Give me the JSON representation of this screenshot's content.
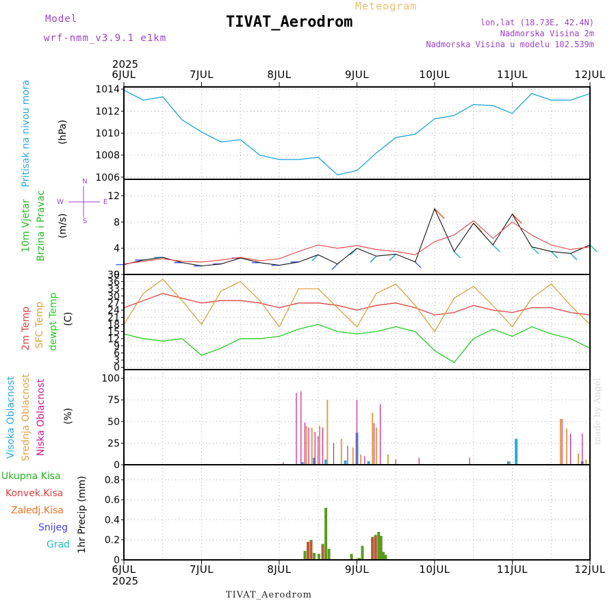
{
  "header": {
    "title": "TIVAT_Aerodrom",
    "subtitle": "Meteogram",
    "model_label": "Model",
    "model_name": "wrf-nmm_v3.9.1 e1km",
    "lonlat": "lon,lat (18.73E, 42.4N)",
    "altitude": "Nadmorska Visina 2m",
    "model_altitude": "Nadmorska Visina u modelu 102.539m"
  },
  "footer": {
    "station": "TIVAT_Aerodrom"
  },
  "watermark": "made by Angel",
  "colors": {
    "pressure": "#29a8e0",
    "wind_label": "#22bb22",
    "temp2m": "#e04040",
    "sfc_temp": "#e0a040",
    "dewpoint": "#22cc22",
    "high_cloud": "#29a8e0",
    "mid_cloud": "#e0a040",
    "low_cloud": "#d01890",
    "total_precip": "#22bb22",
    "convective": "#e04040",
    "freezing": "#f07020",
    "snow": "#4040e0",
    "hail": "#20c0c0",
    "header_purple": "#a040d0"
  },
  "chart_data": [
    {
      "type": "line",
      "panel": "pressure",
      "xticks": [
        "6JUL",
        "7JUL",
        "8JUL",
        "9JUL",
        "10JUL",
        "11JUL",
        "12JUL"
      ],
      "year": "2025",
      "ylabel": [
        "Pritisak na nivou mora",
        "(hPa)"
      ],
      "yticks": [
        1006,
        1008,
        1010,
        1012,
        1014
      ],
      "ylim": [
        1005.8,
        1014.2
      ],
      "x": [
        0,
        0.25,
        0.5,
        0.75,
        1.0,
        1.25,
        1.5,
        1.75,
        2.0,
        2.25,
        2.5,
        2.75,
        3.0,
        3.25,
        3.5,
        3.75,
        4.0,
        4.25,
        4.5,
        4.75,
        5.0,
        5.25,
        5.5,
        5.75,
        6.0
      ],
      "values": [
        1013.9,
        1013.0,
        1013.3,
        1011.2,
        1010.1,
        1009.2,
        1009.4,
        1008.0,
        1007.6,
        1007.6,
        1007.8,
        1006.2,
        1006.6,
        1008.2,
        1009.6,
        1009.9,
        1011.3,
        1011.6,
        1012.6,
        1012.5,
        1011.8,
        1013.6,
        1013.0,
        1013.0,
        1013.6
      ]
    },
    {
      "type": "line",
      "panel": "wind",
      "ylabel": [
        "10m Vjetar",
        "Brzina i Pravac",
        "(m/s)"
      ],
      "compass": [
        "N",
        "W",
        "E",
        "S"
      ],
      "yticks": [
        0,
        4,
        8,
        12
      ],
      "ylim": [
        0,
        14.5
      ],
      "x": [
        0,
        0.25,
        0.5,
        0.75,
        1.0,
        1.25,
        1.5,
        1.75,
        2.0,
        2.25,
        2.5,
        2.75,
        3.0,
        3.25,
        3.5,
        3.75,
        4.0,
        4.25,
        4.5,
        4.75,
        5.0,
        5.25,
        5.5,
        5.75,
        6.0
      ],
      "values": [
        1.5,
        2.2,
        2.6,
        1.8,
        1.3,
        1.6,
        2.5,
        1.8,
        1.4,
        1.9,
        3.0,
        1.6,
        4.0,
        2.8,
        3.1,
        1.9,
        10.0,
        3.5,
        7.8,
        4.5,
        9.2,
        4.2,
        3.5,
        3.2,
        4.5
      ],
      "gust_values": [
        1.6,
        2.0,
        2.4,
        2.0,
        1.9,
        2.2,
        2.6,
        2.1,
        2.4,
        3.5,
        4.5,
        4.0,
        4.4,
        3.8,
        3.5,
        3.0,
        5.0,
        6.0,
        8.2,
        5.5,
        8.0,
        6.0,
        4.5,
        3.8,
        4.2
      ]
    },
    {
      "type": "line",
      "panel": "temperature",
      "ylabel": [
        "2m Temp",
        "SFC Temp",
        "dewpt Temp",
        "(C)"
      ],
      "yticks": [
        0,
        3,
        6,
        9,
        12,
        15,
        18,
        21,
        24,
        27,
        30,
        33,
        36,
        39
      ],
      "ylim": [
        -1,
        39
      ],
      "x": [
        0,
        0.25,
        0.5,
        0.75,
        1.0,
        1.25,
        1.5,
        1.75,
        2.0,
        2.25,
        2.5,
        2.75,
        3.0,
        3.25,
        3.5,
        3.75,
        4.0,
        4.25,
        4.5,
        4.75,
        5.0,
        5.25,
        5.5,
        5.75,
        6.0
      ],
      "series": [
        {
          "name": "2m Temp",
          "values": [
            25,
            28,
            31,
            29,
            27,
            28,
            28,
            27,
            25,
            27,
            27,
            26,
            24,
            26,
            27,
            25,
            22,
            23,
            26,
            24,
            23,
            25,
            25,
            23,
            22
          ]
        },
        {
          "name": "SFC Temp",
          "values": [
            18,
            31,
            37,
            28,
            18,
            32,
            36,
            28,
            17,
            33,
            33,
            25,
            17,
            31,
            35,
            26,
            15,
            29,
            34,
            26,
            17,
            29,
            35,
            26,
            18
          ]
        },
        {
          "name": "dewpt Temp",
          "values": [
            14,
            12,
            11,
            12,
            5,
            8,
            12,
            12,
            13,
            16,
            18,
            15,
            14,
            15,
            17,
            15,
            7,
            2,
            12,
            16,
            13,
            17,
            14,
            12,
            8
          ]
        }
      ]
    },
    {
      "type": "bar",
      "panel": "cloud",
      "ylabel": [
        "Visoka Oblacnost",
        "Srednja Oblacnost",
        "Niska Oblacnost",
        "(%)"
      ],
      "yticks": [
        0,
        25,
        50,
        75,
        100
      ],
      "ylim": [
        0,
        110
      ],
      "series": [
        {
          "name": "Visoka Oblacnost",
          "x": [
            2.3,
            2.45,
            2.6,
            2.85,
            3.0,
            3.15,
            4.95,
            5.05,
            5.9
          ],
          "values": [
            3,
            8,
            6,
            5,
            37,
            4,
            4,
            30,
            4
          ]
        },
        {
          "name": "Srednja Oblacnost",
          "x": [
            2.35,
            2.42,
            2.52,
            2.62,
            2.8,
            2.95,
            3.05,
            3.2,
            3.25,
            3.4,
            4.97,
            5.62,
            5.7,
            5.85,
            5.95
          ],
          "values": [
            45,
            43,
            45,
            75,
            30,
            20,
            12,
            60,
            43,
            12,
            4,
            53,
            42,
            13,
            6
          ]
        },
        {
          "name": "Niska Oblacnost",
          "x": [
            2.05,
            2.22,
            2.28,
            2.33,
            2.38,
            2.46,
            2.5,
            2.56,
            2.7,
            2.88,
            3.0,
            3.1,
            3.22,
            3.3,
            3.5,
            3.8,
            4.45,
            5.64,
            5.75,
            5.9
          ],
          "values": [
            3,
            83,
            85,
            49,
            43,
            38,
            33,
            43,
            25,
            22,
            75,
            10,
            48,
            70,
            6,
            8,
            8,
            53,
            36,
            36
          ]
        }
      ]
    },
    {
      "type": "bar",
      "panel": "precipitation",
      "ylabel": [
        "1hr Precip (mm)"
      ],
      "legend": [
        "Ukupna Kisa",
        "Konvek.Kisa",
        "Zaledj.Kisa",
        "Snijeg",
        "Grad"
      ],
      "yticks": [
        0,
        0.2,
        0.4,
        0.6,
        0.8
      ],
      "ylim": [
        0,
        0.95
      ],
      "series": [
        {
          "name": "Ukupna Kisa",
          "x": [
            2.33,
            2.37,
            2.41,
            2.45,
            2.51,
            2.56,
            2.6,
            2.64,
            2.93,
            3.0,
            3.03,
            3.07,
            3.2,
            3.24,
            3.28,
            3.31,
            3.34,
            3.37
          ],
          "values": [
            0.09,
            0.18,
            0.2,
            0.07,
            0.06,
            0.16,
            0.52,
            0.11,
            0.06,
            0.01,
            0.02,
            0.14,
            0.23,
            0.25,
            0.28,
            0.24,
            0.08,
            0.05
          ]
        },
        {
          "name": "Konvek.Kisa",
          "x": [
            2.37,
            2.41,
            2.56,
            3.2,
            3.24
          ],
          "values": [
            0.18,
            0.19,
            0.14,
            0.22,
            0.24
          ]
        }
      ]
    }
  ]
}
